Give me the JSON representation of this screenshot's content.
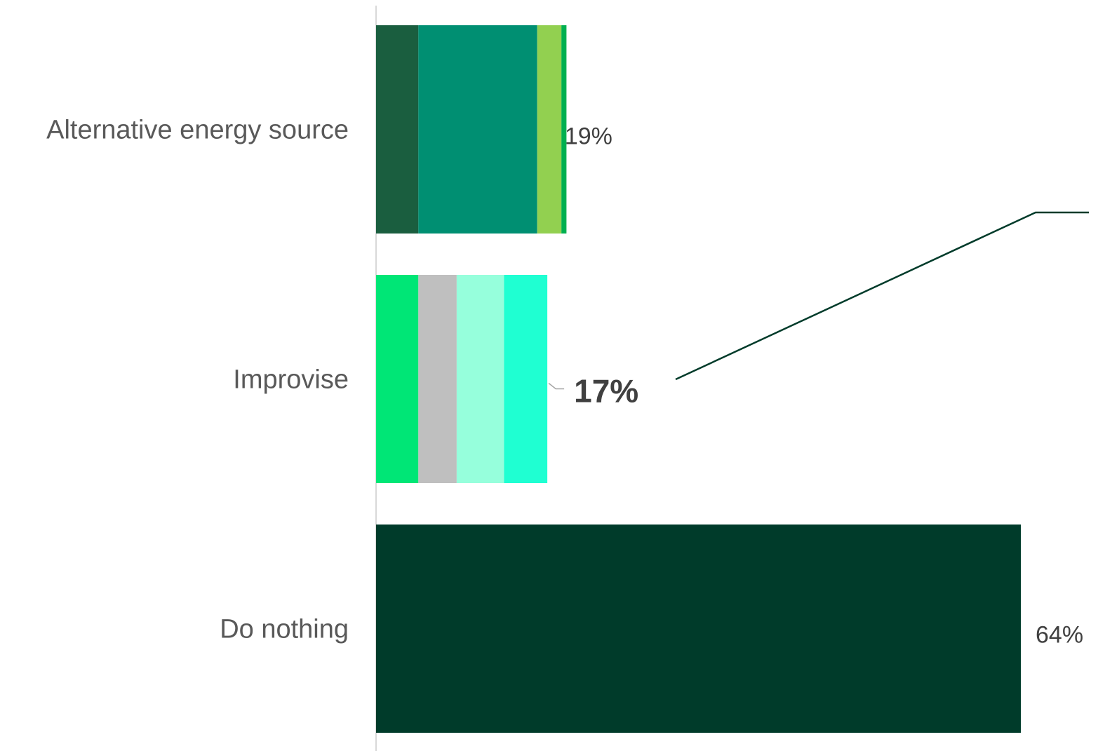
{
  "chart_data": {
    "type": "bar",
    "orientation": "horizontal",
    "stacked": true,
    "categories": [
      "Alternative energy source",
      "Improvise",
      "Do nothing"
    ],
    "xlim": [
      0,
      64
    ],
    "grid": false,
    "bars": [
      {
        "category": "Alternative energy source",
        "total": 19,
        "total_label": "19%",
        "highlight": false,
        "segments": [
          {
            "value": 4.2,
            "color": "#1a5e3f"
          },
          {
            "value": 11.8,
            "color": "#008f72"
          },
          {
            "value": 2.4,
            "color": "#92d050"
          },
          {
            "value": 0.5,
            "color": "#00b050"
          }
        ]
      },
      {
        "category": "Improvise",
        "total": 17,
        "total_label": "17%",
        "highlight": true,
        "segments": [
          {
            "value": 4.2,
            "color": "#00e676"
          },
          {
            "value": 3.8,
            "color": "#bfbfbf"
          },
          {
            "value": 4.7,
            "color": "#96ffdc"
          },
          {
            "value": 4.3,
            "color": "#1fffd2"
          }
        ]
      },
      {
        "category": "Do nothing",
        "total": 64,
        "total_label": "64%",
        "highlight": false,
        "segments": [
          {
            "value": 64,
            "color": "#003b2a"
          }
        ]
      }
    ],
    "callout_line_color": "#003b2a",
    "axis_color": "#d9d9d9"
  }
}
